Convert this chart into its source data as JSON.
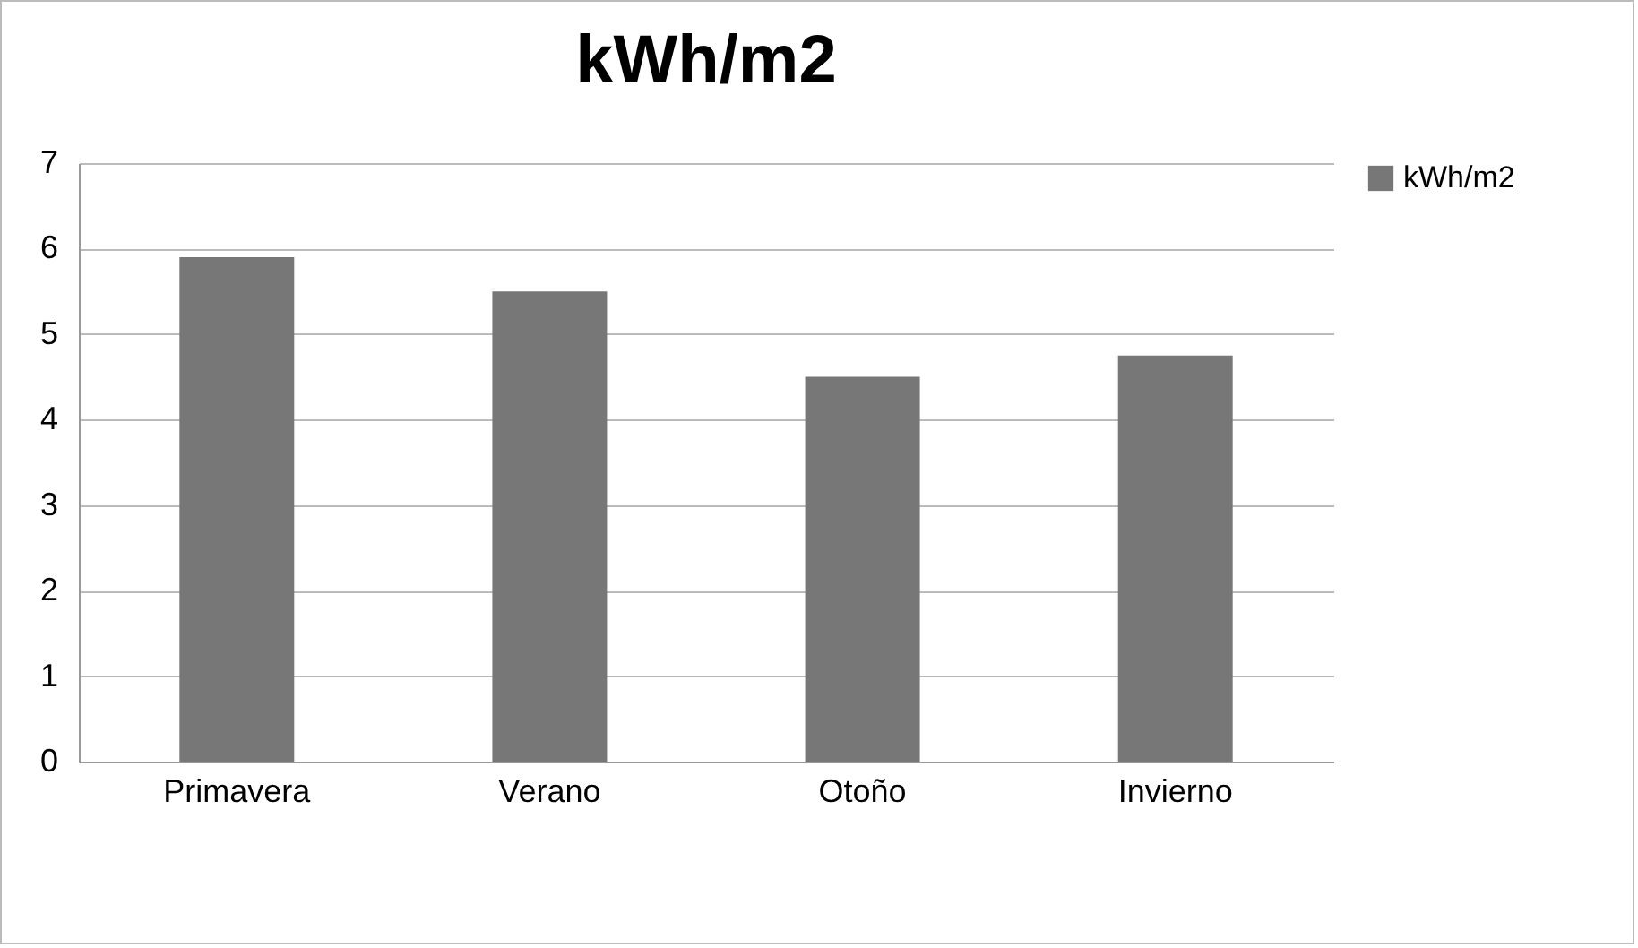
{
  "chart_data": {
    "type": "bar",
    "title": "kWh/m2",
    "categories": [
      "Primavera",
      "Verano",
      "Otoño",
      "Invierno"
    ],
    "series": [
      {
        "name": "kWh/m2",
        "color": "#777777",
        "values": [
          5.9,
          5.5,
          4.5,
          4.75
        ]
      }
    ],
    "ylim": [
      0,
      7
    ],
    "yticks": [
      0,
      1,
      2,
      3,
      4,
      5,
      6,
      7
    ],
    "grid": "y",
    "legend": "right"
  }
}
